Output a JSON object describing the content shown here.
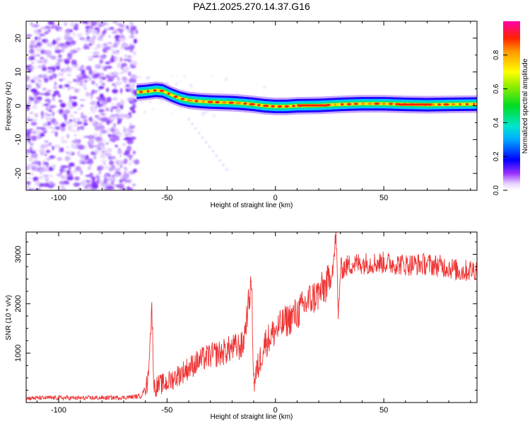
{
  "title": "PAZ1.2025.270.14.37.G16",
  "chart_data": [
    {
      "type": "heatmap",
      "name": "spectrogram",
      "xlabel": "Height of straight line (km)",
      "ylabel": "Frequency (Hz)",
      "xlim": [
        -115,
        93
      ],
      "ylim": [
        -25,
        25
      ],
      "xticks": [
        -100,
        -50,
        0,
        50
      ],
      "yticks": [
        -20,
        -10,
        0,
        10,
        20
      ],
      "ridge": [
        {
          "x": -64,
          "y": 4.0
        },
        {
          "x": -60,
          "y": 4.2
        },
        {
          "x": -55,
          "y": 4.6
        },
        {
          "x": -52,
          "y": 4.4
        },
        {
          "x": -48,
          "y": 3.2
        },
        {
          "x": -44,
          "y": 2.2
        },
        {
          "x": -40,
          "y": 1.6
        },
        {
          "x": -35,
          "y": 1.3
        },
        {
          "x": -30,
          "y": 1.1
        },
        {
          "x": -25,
          "y": 1.0
        },
        {
          "x": -20,
          "y": 0.9
        },
        {
          "x": -15,
          "y": 0.7
        },
        {
          "x": -10,
          "y": 0.4
        },
        {
          "x": -5,
          "y": 0.0
        },
        {
          "x": 0,
          "y": -0.2
        },
        {
          "x": 5,
          "y": -0.2
        },
        {
          "x": 10,
          "y": 0.0
        },
        {
          "x": 20,
          "y": 0.1
        },
        {
          "x": 30,
          "y": 0.4
        },
        {
          "x": 40,
          "y": 0.6
        },
        {
          "x": 50,
          "y": 0.6
        },
        {
          "x": 60,
          "y": 0.4
        },
        {
          "x": 70,
          "y": 0.3
        },
        {
          "x": 80,
          "y": 0.4
        },
        {
          "x": 93,
          "y": 0.5
        }
      ],
      "colorbar": {
        "label": "Normalized spectral amplitude",
        "range": [
          0,
          1
        ],
        "ticks": [
          "0.0",
          "0.2",
          "0.4",
          "0.6",
          "0.8"
        ]
      }
    },
    {
      "type": "line",
      "name": "snr",
      "xlabel": "Height of straight line (km)",
      "ylabel": "SNR (10 * v/v)",
      "xlim": [
        -115,
        93
      ],
      "ylim": [
        0,
        3450
      ],
      "xticks": [
        -100,
        -50,
        0,
        50
      ],
      "yticks": [
        1000,
        2000,
        3000
      ],
      "color": "#ee3333",
      "series": [
        {
          "name": "SNR",
          "x": [
            -115,
            -100,
            -90,
            -80,
            -70,
            -62,
            -59,
            -57,
            -56,
            -54,
            -50,
            -45,
            -40,
            -35,
            -30,
            -25,
            -20,
            -15,
            -11,
            -10,
            -5,
            0,
            5,
            10,
            15,
            20,
            25,
            27,
            28,
            29,
            30,
            35,
            40,
            50,
            60,
            70,
            80,
            85,
            93
          ],
          "y": [
            90,
            95,
            90,
            95,
            100,
            130,
            380,
            1900,
            300,
            350,
            400,
            550,
            700,
            850,
            950,
            1000,
            1100,
            1150,
            2450,
            400,
            1200,
            1450,
            1650,
            1800,
            2050,
            2200,
            2450,
            2900,
            3450,
            1700,
            2700,
            2800,
            2820,
            2830,
            2790,
            2800,
            2740,
            2650,
            2700
          ]
        }
      ]
    }
  ]
}
